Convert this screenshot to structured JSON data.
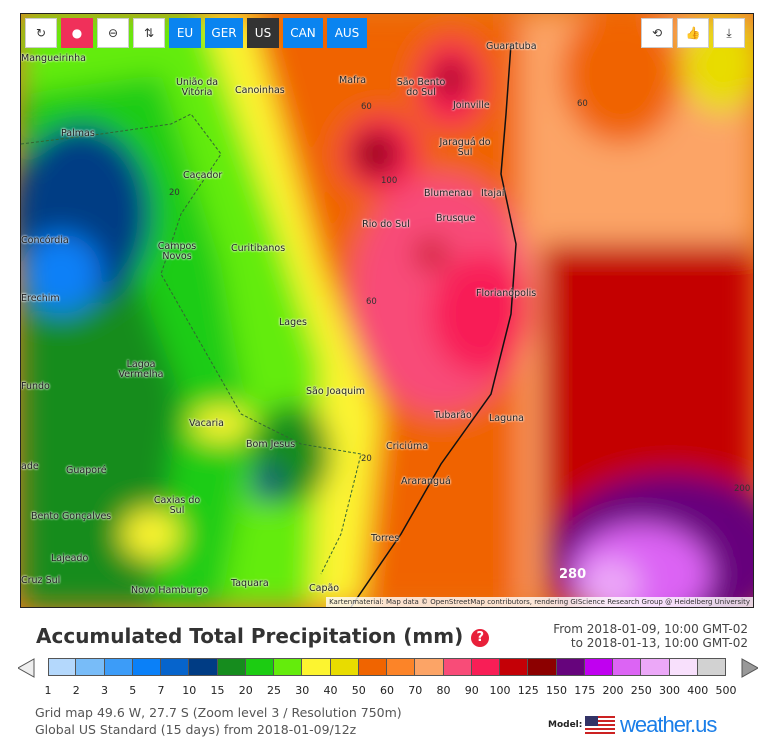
{
  "toolbar": {
    "left": [
      {
        "icon": "refresh-icon",
        "glyph": "↻"
      },
      {
        "icon": "map-pin-icon",
        "glyph": "●"
      },
      {
        "icon": "zoom-out-icon",
        "glyph": "⊖"
      },
      {
        "icon": "sort-icon",
        "glyph": "⇅"
      }
    ],
    "regions": [
      "EU",
      "GER",
      "US",
      "CAN",
      "AUS"
    ],
    "active_region": "US",
    "right": [
      {
        "icon": "retweet-icon",
        "glyph": "⟲"
      },
      {
        "icon": "thumbs-up-icon",
        "glyph": "👍"
      },
      {
        "icon": "download-icon",
        "glyph": "⤓"
      }
    ]
  },
  "map": {
    "cities": [
      "Mangueirinha",
      "União da Vitória",
      "Canoinhas",
      "Mafra",
      "São Bento do Sul",
      "Guaratuba",
      "Joinville",
      "Palmas",
      "Jaraguá do Sul",
      "Caçador",
      "Blumenau",
      "Itajaí",
      "Brusque",
      "Concórdia",
      "Campos Novos",
      "Curitibanos",
      "Rio do Sul",
      "Erechim",
      "Florianópolis",
      "Lages",
      "Lagoa Vermelha",
      "Fundo",
      "São Joaquim",
      "Vacaria",
      "Tubarão",
      "Laguna",
      "Bom Jesus",
      "Criciúma",
      "ade",
      "Guaporé",
      "Araranguá",
      "Caxias do Sul",
      "Bento Gonçalves",
      "Torres",
      "Lajeado",
      "Cruz Sul",
      "Novo Hamburgo",
      "Taquara",
      "Capão"
    ],
    "contours": [
      "60",
      "60",
      "100",
      "20",
      "60",
      "20",
      "200",
      "280"
    ],
    "attribution": "Kartenmaterial: Map data © OpenStreetMap contributors, rendering GIScience Research Group @ Heidelberg University"
  },
  "legend": {
    "title": "Accumulated Total Precipitation (mm)",
    "help": "?",
    "from": "From 2018-01-09, 10:00 GMT-02",
    "to": "to 2018-01-13, 10:00 GMT-02",
    "ticks": [
      "1",
      "2",
      "3",
      "5",
      "7",
      "10",
      "15",
      "20",
      "25",
      "30",
      "40",
      "50",
      "60",
      "70",
      "80",
      "90",
      "100",
      "125",
      "150",
      "175",
      "200",
      "250",
      "300",
      "400",
      "500"
    ],
    "colors": [
      "#b4d8fc",
      "#78bcf8",
      "#3c9cf8",
      "#0a80f8",
      "#0664cc",
      "#003c84",
      "#168c1e",
      "#1ccc12",
      "#64ec0c",
      "#fcf430",
      "#e8dc00",
      "#f06400",
      "#fc8428",
      "#fca466",
      "#f84c78",
      "#f81e56",
      "#c40006",
      "#8c0000",
      "#66047c",
      "#c000f0",
      "#dc64f4",
      "#eca8f8",
      "#f8e0fc",
      "#d2d2d2"
    ]
  },
  "info": {
    "line1": "Grid map 49.6 W, 27.7 S (Zoom level 3 / Resolution 750m)",
    "line2": "Global US Standard (15 days) from 2018-01-09/12z"
  },
  "branding": {
    "model_label": "Model:",
    "logo": "weather.us"
  }
}
